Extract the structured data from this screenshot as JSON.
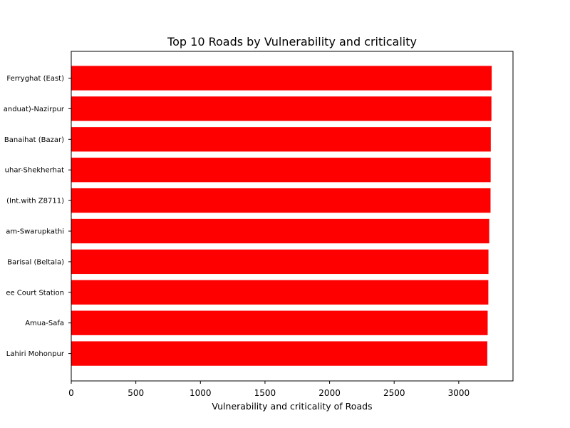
{
  "chart_data": {
    "type": "bar",
    "orientation": "horizontal",
    "title": "Top 10 Roads by Vulnerability and criticality",
    "xlabel": "Vulnerability and criticality of Roads",
    "ylabel": "",
    "xlim": [
      0,
      3420
    ],
    "xticks": [
      0,
      500,
      1000,
      1500,
      2000,
      2500,
      3000
    ],
    "bar_color": "#ff0000",
    "categories": [
      "Ferryghat (East)",
      "anduat)-Nazirpur",
      "Banaihat (Bazar)",
      "uhar-Shekherhat",
      "(Int.with Z8711)",
      "am-Swarupkathi",
      "Barisal (Beltala)",
      "ee Court Station",
      "Amua-Safa",
      "Lahiri Mohonpur"
    ],
    "values": [
      3255,
      3253,
      3248,
      3247,
      3246,
      3236,
      3230,
      3229,
      3224,
      3221
    ]
  }
}
